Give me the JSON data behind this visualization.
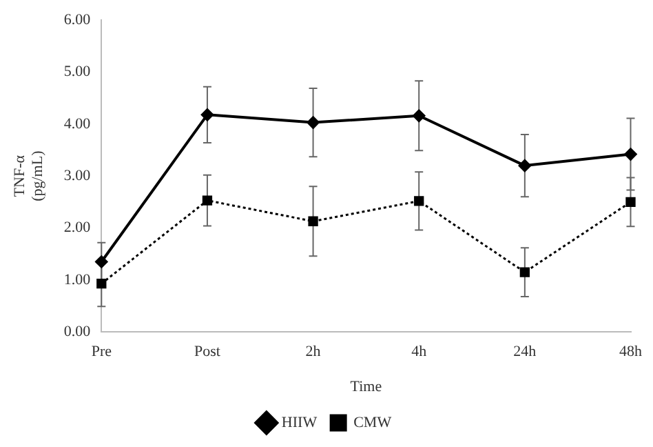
{
  "chart_data": {
    "type": "line",
    "xlabel": "Time",
    "ylabel": "TNF-α\n(pg/mL)",
    "categories": [
      "Pre",
      "Post",
      "2h",
      "4h",
      "24h",
      "48h"
    ],
    "series": [
      {
        "name": "HIIW",
        "color": "#000000",
        "marker": "diamond",
        "line_style": "solid",
        "values": [
          1.35,
          4.18,
          4.03,
          4.16,
          3.2,
          3.42
        ],
        "errors": [
          0.37,
          0.54,
          0.66,
          0.67,
          0.6,
          0.69
        ]
      },
      {
        "name": "CMW",
        "color": "#000000",
        "marker": "square",
        "line_style": "dotted",
        "values": [
          0.93,
          2.53,
          2.13,
          2.52,
          1.15,
          2.5
        ],
        "errors": [
          0.44,
          0.49,
          0.67,
          0.56,
          0.47,
          0.47
        ]
      }
    ],
    "ylim": [
      0,
      6
    ],
    "yticks": [
      {
        "value": 0,
        "label": "0.00"
      },
      {
        "value": 1,
        "label": "1.00"
      },
      {
        "value": 2,
        "label": "2.00"
      },
      {
        "value": 3,
        "label": "3.00"
      },
      {
        "value": 4,
        "label": "4.00"
      },
      {
        "value": 5,
        "label": "5.00"
      },
      {
        "value": 6,
        "label": "6.00"
      }
    ],
    "grid": false,
    "legend": "bottom"
  }
}
